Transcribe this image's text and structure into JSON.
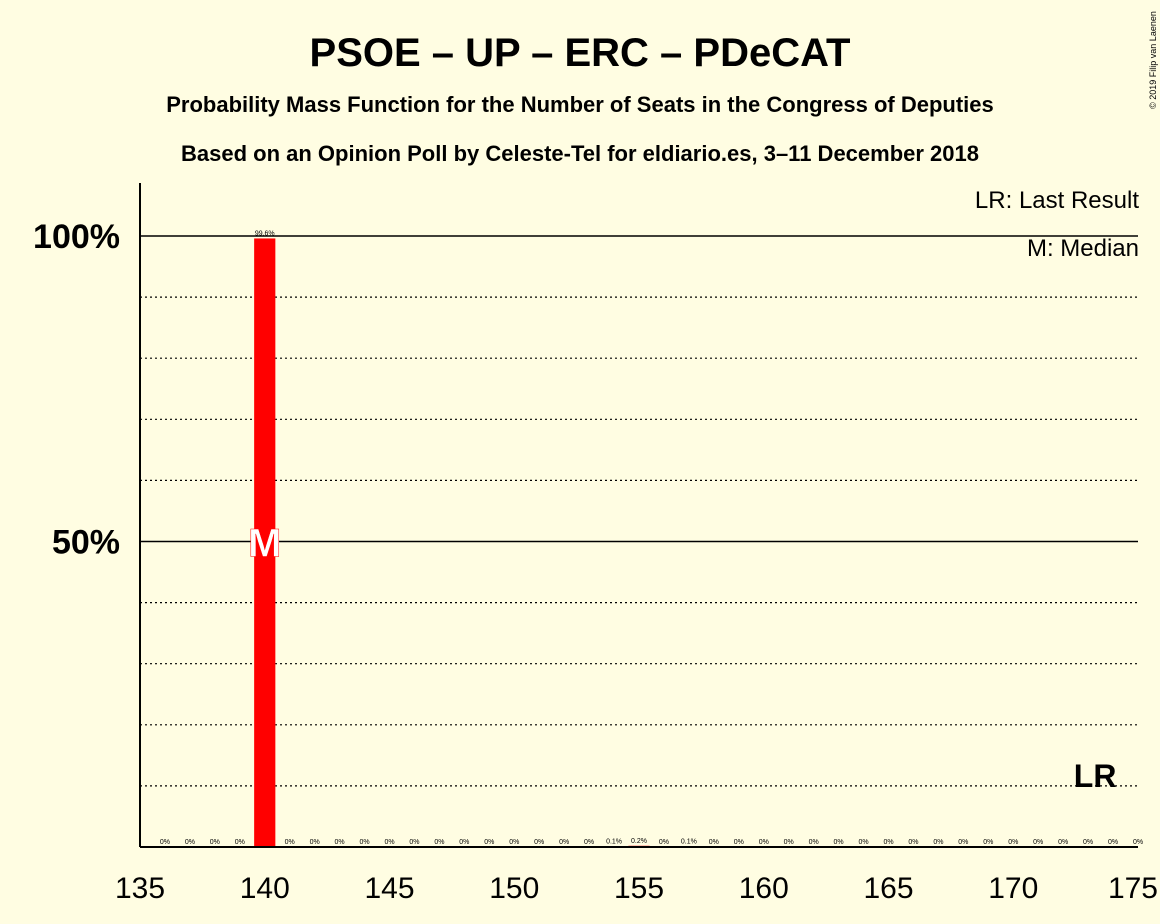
{
  "chart_data": {
    "type": "bar",
    "title": "PSOE – UP – ERC – PDeCAT",
    "subtitle_1": "Probability Mass Function for the Number of Seats in the Congress of Deputies",
    "subtitle_2": "Based on an Opinion Poll by Celeste-Tel for eldiario.es, 3–11 December 2018",
    "copyright": "© 2019 Filip van Laenen",
    "xlim": [
      135,
      175
    ],
    "ylim": [
      0,
      100
    ],
    "x_ticks": [
      135,
      140,
      145,
      150,
      155,
      160,
      165,
      170,
      175
    ],
    "x_tick_labels": [
      "135",
      "140",
      "145",
      "150",
      "155",
      "160",
      "165",
      "170",
      "175"
    ],
    "y_major_ticks": [
      50,
      100
    ],
    "y_tick_labels": [
      "50%",
      "100%"
    ],
    "y_minor_gridlines": [
      10,
      20,
      30,
      40,
      60,
      70,
      80,
      90
    ],
    "bar_color": "#FF0000",
    "seats": [
      136,
      137,
      138,
      139,
      140,
      141,
      142,
      143,
      144,
      145,
      146,
      147,
      148,
      149,
      150,
      151,
      152,
      153,
      154,
      155,
      156,
      157,
      158,
      159,
      160,
      161,
      162,
      163,
      164,
      165,
      166,
      167,
      168,
      169,
      170,
      171,
      172,
      173,
      174,
      175
    ],
    "values": [
      0,
      0,
      0,
      0,
      99.6,
      0,
      0,
      0,
      0,
      0,
      0,
      0,
      0,
      0,
      0,
      0,
      0,
      0,
      0.1,
      0.2,
      0,
      0.1,
      0,
      0,
      0,
      0,
      0,
      0,
      0,
      0,
      0,
      0,
      0,
      0,
      0,
      0,
      0,
      0,
      0,
      0
    ],
    "labels": [
      "0%",
      "0%",
      "0%",
      "0%",
      "99.6%",
      "0%",
      "0%",
      "0%",
      "0%",
      "0%",
      "0%",
      "0%",
      "0%",
      "0%",
      "0%",
      "0%",
      "0%",
      "0%",
      "0.1%",
      "0.2%",
      "0%",
      "0.1%",
      "0%",
      "0%",
      "0%",
      "0%",
      "0%",
      "0%",
      "0%",
      "0%",
      "0%",
      "0%",
      "0%",
      "0%",
      "0%",
      "0%",
      "0%",
      "0%",
      "0%",
      "0%"
    ],
    "median": {
      "seat": 140,
      "marker": "M"
    },
    "last_result": {
      "seat": 173,
      "marker": "LR"
    },
    "legend": {
      "placement": "top-right",
      "items": [
        "LR: Last Result",
        "M: Median"
      ]
    }
  }
}
